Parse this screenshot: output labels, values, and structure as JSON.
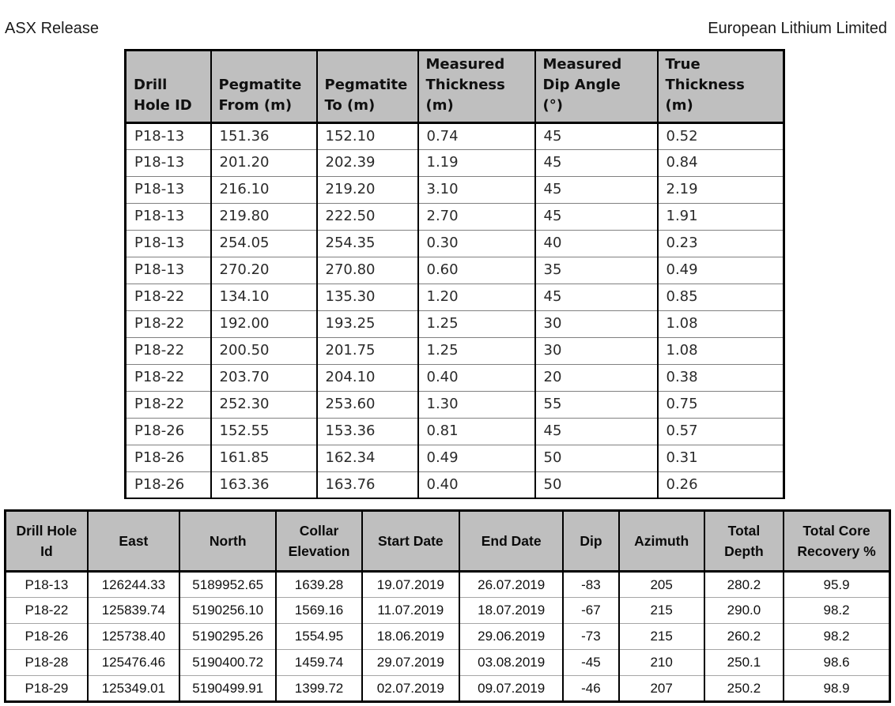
{
  "header": {
    "left": "ASX Release",
    "right": "European Lithium Limited"
  },
  "colors": {
    "table_header_bg": "#BFBFBF",
    "table_border": "#000000",
    "peg_row_divider": "#808080",
    "collar_row_divider": "#A6A6A6"
  },
  "pegmatite_table": {
    "columns": [
      "Drill\nHole ID",
      "Pegmatite\nFrom (m)",
      "Pegmatite\nTo (m)",
      "Measured\nThickness\n(m)",
      "Measured\nDip Angle\n(°)",
      "True\nThickness\n(m)"
    ],
    "rows": [
      [
        "P18-13",
        "151.36",
        "152.10",
        "0.74",
        "45",
        "0.52"
      ],
      [
        "P18-13",
        "201.20",
        "202.39",
        "1.19",
        "45",
        "0.84"
      ],
      [
        "P18-13",
        "216.10",
        "219.20",
        "3.10",
        "45",
        "2.19"
      ],
      [
        "P18-13",
        "219.80",
        "222.50",
        "2.70",
        "45",
        "1.91"
      ],
      [
        "P18-13",
        "254.05",
        "254.35",
        "0.30",
        "40",
        "0.23"
      ],
      [
        "P18-13",
        "270.20",
        "270.80",
        "0.60",
        "35",
        "0.49"
      ],
      [
        "P18-22",
        "134.10",
        "135.30",
        "1.20",
        "45",
        "0.85"
      ],
      [
        "P18-22",
        "192.00",
        "193.25",
        "1.25",
        "30",
        "1.08"
      ],
      [
        "P18-22",
        "200.50",
        "201.75",
        "1.25",
        "30",
        "1.08"
      ],
      [
        "P18-22",
        "203.70",
        "204.10",
        "0.40",
        "20",
        "0.38"
      ],
      [
        "P18-22",
        "252.30",
        "253.60",
        "1.30",
        "55",
        "0.75"
      ],
      [
        "P18-26",
        "152.55",
        "153.36",
        "0.81",
        "45",
        "0.57"
      ],
      [
        "P18-26",
        "161.85",
        "162.34",
        "0.49",
        "50",
        "0.31"
      ],
      [
        "P18-26",
        "163.36",
        "163.76",
        "0.40",
        "50",
        "0.26"
      ]
    ]
  },
  "collar_table": {
    "columns": [
      "Drill Hole\nId",
      "East",
      "North",
      "Collar\nElevation",
      "Start Date",
      "End Date",
      "Dip",
      "Azimuth",
      "Total\nDepth",
      "Total Core\nRecovery %"
    ],
    "rows": [
      [
        "P18-13",
        "126244.33",
        "5189952.65",
        "1639.28",
        "19.07.2019",
        "26.07.2019",
        "-83",
        "205",
        "280.2",
        "95.9"
      ],
      [
        "P18-22",
        "125839.74",
        "5190256.10",
        "1569.16",
        "11.07.2019",
        "18.07.2019",
        "-67",
        "215",
        "290.0",
        "98.2"
      ],
      [
        "P18-26",
        "125738.40",
        "5190295.26",
        "1554.95",
        "18.06.2019",
        "29.06.2019",
        "-73",
        "215",
        "260.2",
        "98.2"
      ],
      [
        "P18-28",
        "125476.46",
        "5190400.72",
        "1459.74",
        "29.07.2019",
        "03.08.2019",
        "-45",
        "210",
        "250.1",
        "98.6"
      ],
      [
        "P18-29",
        "125349.01",
        "5190499.91",
        "1399.72",
        "02.07.2019",
        "09.07.2019",
        "-46",
        "207",
        "250.2",
        "98.9"
      ]
    ]
  }
}
